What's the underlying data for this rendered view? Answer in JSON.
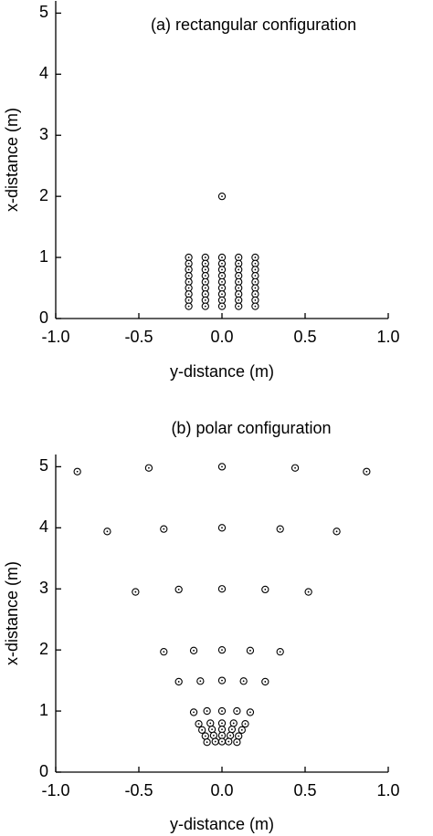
{
  "chart_data": [
    {
      "type": "scatter",
      "title": "(a) rectangular configuration",
      "x_label": "y-distance (m)",
      "y_label": "x-distance (m)",
      "x": [
        -0.2,
        -0.2,
        -0.2,
        -0.2,
        -0.2,
        -0.2,
        -0.2,
        -0.2,
        -0.2,
        -0.1,
        -0.1,
        -0.1,
        -0.1,
        -0.1,
        -0.1,
        -0.1,
        -0.1,
        -0.1,
        0,
        0,
        0,
        0,
        0,
        0,
        0,
        0,
        0,
        0.1,
        0.1,
        0.1,
        0.1,
        0.1,
        0.1,
        0.1,
        0.1,
        0.1,
        0.2,
        0.2,
        0.2,
        0.2,
        0.2,
        0.2,
        0.2,
        0.2,
        0.2,
        0
      ],
      "y": [
        1,
        0.9,
        0.8,
        0.7,
        0.6,
        0.5,
        0.4,
        0.3,
        0.2,
        1,
        0.9,
        0.8,
        0.7,
        0.6,
        0.5,
        0.4,
        0.3,
        0.2,
        1,
        0.9,
        0.8,
        0.7,
        0.6,
        0.5,
        0.4,
        0.3,
        0.2,
        1,
        0.9,
        0.8,
        0.7,
        0.6,
        0.5,
        0.4,
        0.3,
        0.2,
        1,
        0.9,
        0.8,
        0.7,
        0.6,
        0.5,
        0.4,
        0.3,
        0.2,
        2
      ],
      "xlim": [
        -1,
        1
      ],
      "ylim": [
        0,
        5.2
      ],
      "xticks": [
        {
          "value": -1,
          "label": "-1.0"
        },
        -0.5,
        {
          "value": 0,
          "label": "0.0"
        },
        0.5,
        {
          "value": 1,
          "label": "1.0"
        }
      ],
      "yticks": [
        0,
        1,
        2,
        3,
        4,
        5
      ],
      "color": "#000000"
    },
    {
      "type": "scatter",
      "title": "(b) polar configuration",
      "x_label": "y-distance (m)",
      "y_label": "x-distance (m)",
      "x": [
        -0.87,
        -0.44,
        0,
        0.44,
        0.87,
        -0.69,
        -0.35,
        0,
        0.35,
        0.69,
        -0.52,
        -0.26,
        0,
        0.26,
        0.52,
        -0.35,
        -0.17,
        0,
        0.17,
        0.35,
        -0.26,
        -0.13,
        0,
        0.13,
        0.26,
        -0.17,
        -0.09,
        0,
        0.09,
        0.17,
        -0.14,
        -0.07,
        0,
        0.07,
        0.14,
        -0.12,
        -0.06,
        0,
        0.06,
        0.12,
        -0.1,
        -0.05,
        0,
        0.05,
        0.1,
        -0.09,
        -0.04,
        0,
        0.04,
        0.09
      ],
      "y": [
        4.92,
        4.98,
        5,
        4.98,
        4.92,
        3.94,
        3.98,
        4,
        3.98,
        3.94,
        2.95,
        2.99,
        3,
        2.99,
        2.95,
        1.97,
        1.99,
        2,
        1.99,
        1.97,
        1.48,
        1.49,
        1.5,
        1.49,
        1.48,
        0.98,
        1,
        1,
        1,
        0.98,
        0.79,
        0.8,
        0.8,
        0.8,
        0.79,
        0.69,
        0.7,
        0.7,
        0.7,
        0.69,
        0.59,
        0.6,
        0.6,
        0.6,
        0.59,
        0.49,
        0.5,
        0.5,
        0.5,
        0.49
      ],
      "xlim": [
        -1,
        1
      ],
      "ylim": [
        0,
        5.2
      ],
      "xticks": [
        {
          "value": -1,
          "label": "-1.0"
        },
        -0.5,
        {
          "value": 0,
          "label": "0.0"
        },
        0.5,
        {
          "value": 1,
          "label": "1.0"
        }
      ],
      "yticks": [
        0,
        1,
        2,
        3,
        4,
        5
      ],
      "color": "#000000"
    }
  ]
}
